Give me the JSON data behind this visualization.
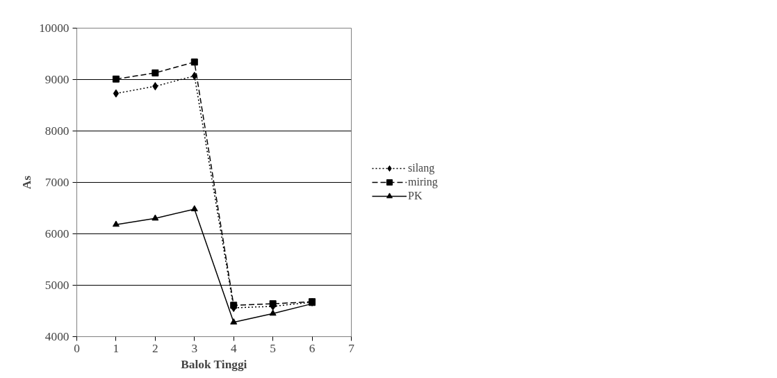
{
  "chart_data": {
    "type": "line",
    "xlabel": "Balok Tinggi",
    "ylabel": "As",
    "x": [
      1,
      2,
      3,
      4,
      5,
      6
    ],
    "series": [
      {
        "name": "silang",
        "color": "#000000",
        "values": [
          8730,
          8870,
          9070,
          4560,
          4590,
          4670
        ],
        "marker": "diamond",
        "line_style": "dotted"
      },
      {
        "name": "miring",
        "color": "#000000",
        "values": [
          9010,
          9130,
          9340,
          4610,
          4640,
          4680
        ],
        "marker": "square",
        "line_style": "dashed"
      },
      {
        "name": "PK",
        "color": "#000000",
        "values": [
          6180,
          6300,
          6480,
          4280,
          4450,
          4640
        ],
        "marker": "triangle",
        "line_style": "solid"
      }
    ],
    "xlim": [
      0,
      7
    ],
    "xticks": [
      0,
      1,
      2,
      3,
      4,
      5,
      6,
      7
    ],
    "ylim": [
      4000,
      10000
    ],
    "yticks": [
      4000,
      5000,
      6000,
      7000,
      8000,
      9000,
      10000
    ],
    "grid": "y",
    "legend": "right"
  }
}
